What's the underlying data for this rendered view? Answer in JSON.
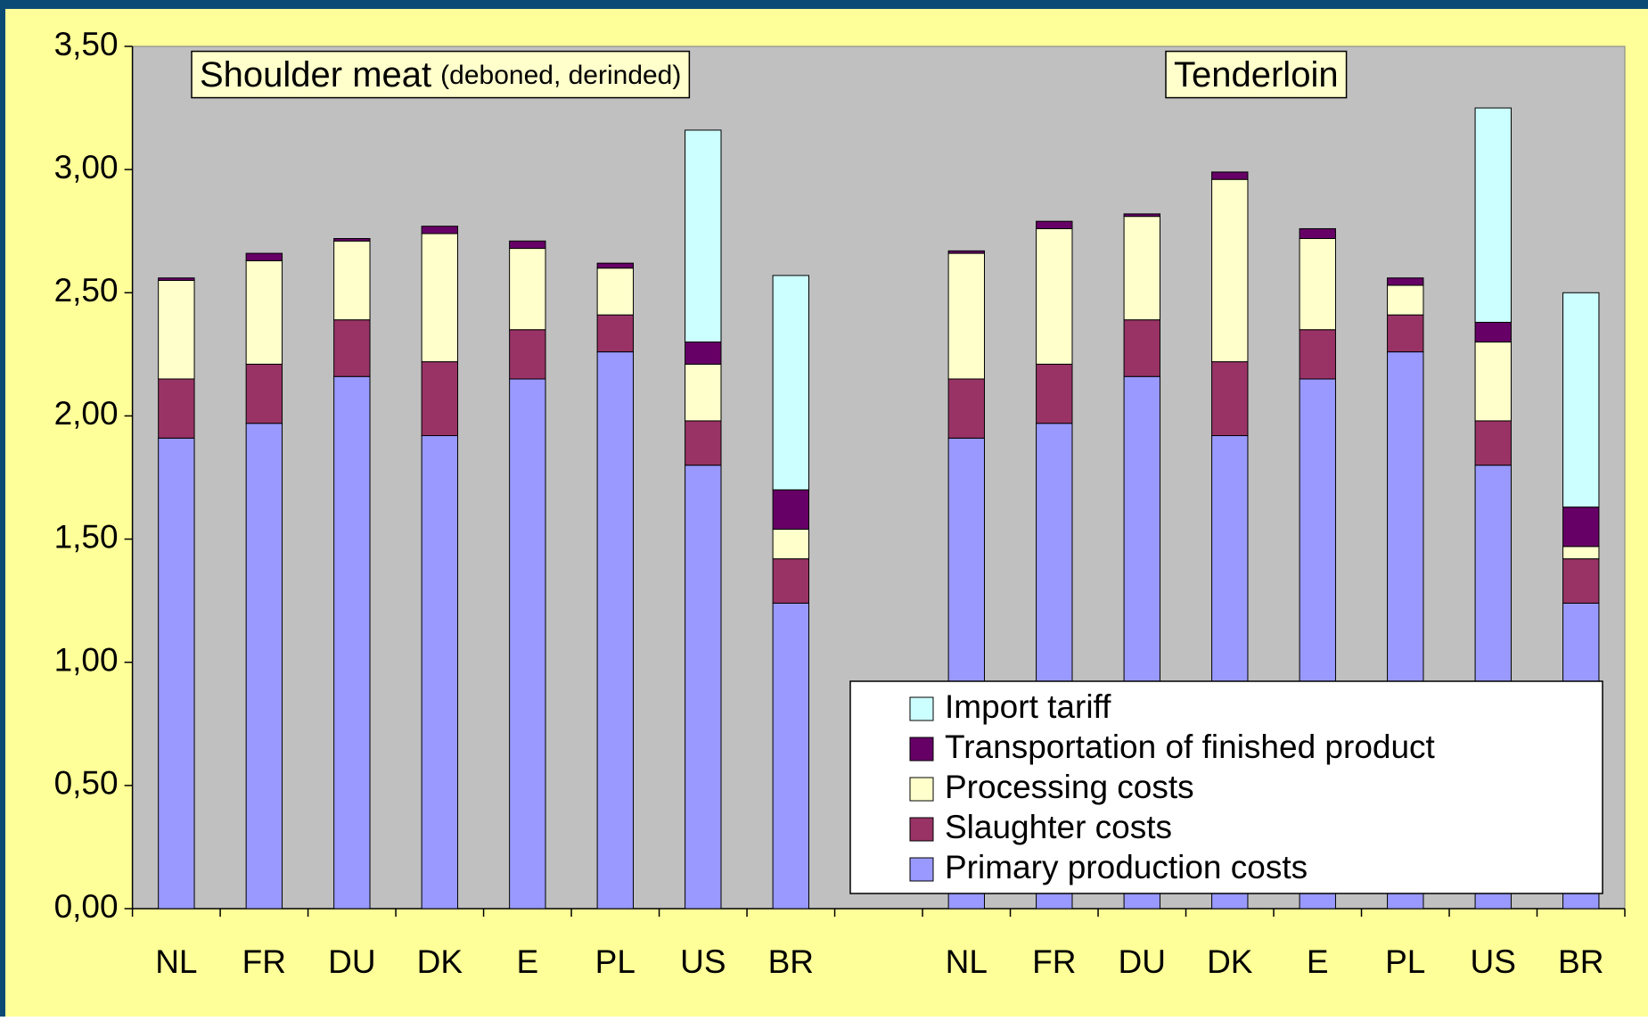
{
  "chart_data": {
    "type": "stacked_bar",
    "annotations": [
      "Shoulder meat",
      "(deboned, derinded)",
      "Tenderloin"
    ],
    "categories": [
      "NL",
      "FR",
      "DU",
      "DK",
      "E",
      "PL",
      "US",
      "BR",
      null,
      "NL",
      "FR",
      "DU",
      "DK",
      "E",
      "PL",
      "US",
      "BR"
    ],
    "series": [
      {
        "name": "Primary production costs",
        "color": "#9999ff",
        "values": [
          1.91,
          1.97,
          2.16,
          1.92,
          2.15,
          2.26,
          1.8,
          1.24,
          null,
          1.91,
          1.97,
          2.16,
          1.92,
          2.15,
          2.26,
          1.8,
          1.24
        ]
      },
      {
        "name": "Slaughter costs",
        "color": "#993366",
        "values": [
          0.24,
          0.24,
          0.23,
          0.3,
          0.2,
          0.15,
          0.18,
          0.18,
          null,
          0.24,
          0.24,
          0.23,
          0.3,
          0.2,
          0.15,
          0.18,
          0.18
        ]
      },
      {
        "name": "Processing costs",
        "color": "#ffffcc",
        "values": [
          0.4,
          0.42,
          0.32,
          0.52,
          0.33,
          0.19,
          0.23,
          0.12,
          null,
          0.51,
          0.55,
          0.42,
          0.74,
          0.37,
          0.12,
          0.32,
          0.05
        ]
      },
      {
        "name": "Transportation of finished product",
        "color": "#660066",
        "values": [
          0.01,
          0.03,
          0.01,
          0.03,
          0.03,
          0.02,
          0.09,
          0.16,
          null,
          0.01,
          0.03,
          0.01,
          0.03,
          0.04,
          0.03,
          0.08,
          0.16
        ]
      },
      {
        "name": "Import tariff",
        "color": "#ccffff",
        "values": [
          0,
          0,
          0,
          0,
          0,
          0,
          0.86,
          0.87,
          null,
          0,
          0,
          0,
          0,
          0,
          0,
          0.87,
          0.87
        ]
      }
    ],
    "ylim": [
      0,
      3.5
    ],
    "yticks": [
      {
        "value": 0,
        "label": "0,00"
      },
      {
        "value": 0.5,
        "label": "0,50"
      },
      {
        "value": 1,
        "label": "1,00"
      },
      {
        "value": 1.5,
        "label": "1,50"
      },
      {
        "value": 2,
        "label": "2,00"
      },
      {
        "value": 2.5,
        "label": "2,50"
      },
      {
        "value": 3,
        "label": "3,00"
      },
      {
        "value": 3.5,
        "label": "3,50"
      }
    ],
    "legend": "lower right"
  }
}
